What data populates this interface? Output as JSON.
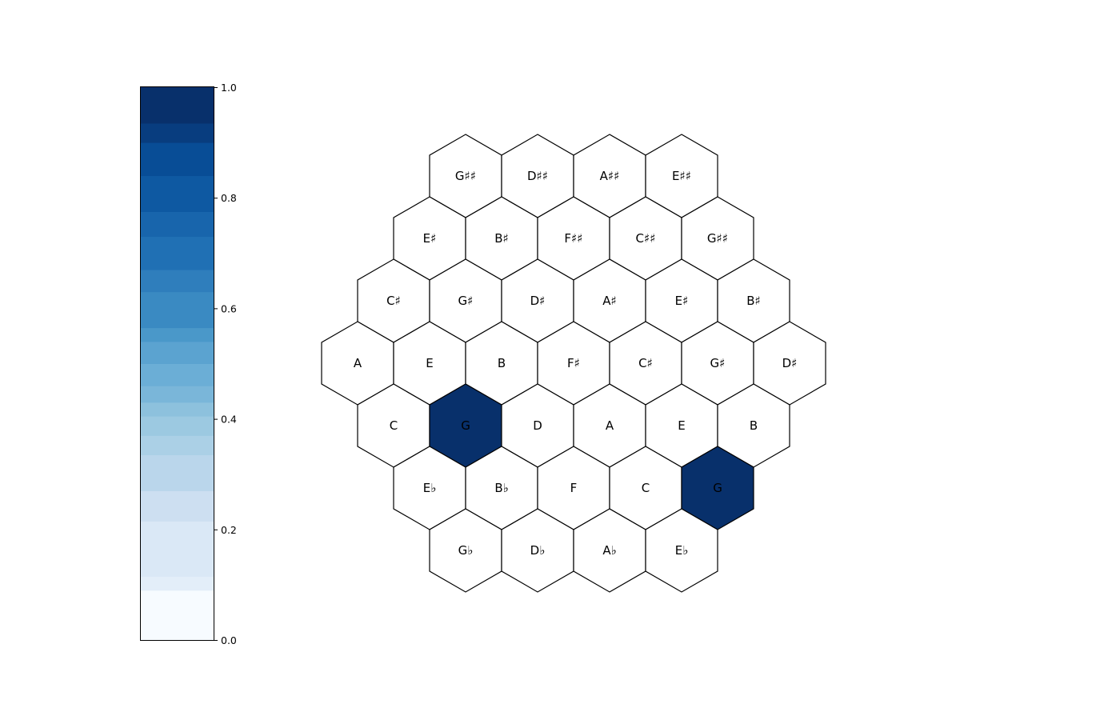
{
  "chart_data": {
    "type": "heatmap",
    "layout": "hexagonal tonnetz",
    "title": "",
    "colormap": "Blues",
    "color_range": [
      0.0,
      1.0
    ],
    "colorbar": {
      "ticks": [
        0.0,
        0.2,
        0.4,
        0.6,
        0.8,
        1.0
      ],
      "tick_labels": [
        "0.0",
        "0.2",
        "0.4",
        "0.6",
        "0.8",
        "1.0"
      ],
      "levels": [
        0.0,
        0.09,
        0.115,
        0.215,
        0.27,
        0.335,
        0.37,
        0.405,
        0.43,
        0.46,
        0.5,
        0.54,
        0.565,
        0.63,
        0.67,
        0.73,
        0.775,
        0.84,
        0.9,
        0.935,
        1.0
      ],
      "level_colors": [
        "#f7fbff",
        "#e3eef9",
        "#dae8f6",
        "#cddff1",
        "#bad6eb",
        "#abd0e6",
        "#9cc9e1",
        "#8dc1dd",
        "#7ab6d9",
        "#6baed6",
        "#5ba3d0",
        "#4a98c9",
        "#3a8ac2",
        "#2f7ebc",
        "#2070b4",
        "#1865ac",
        "#0e59a2",
        "#084d96",
        "#083d7f",
        "#08306b"
      ],
      "position": "left"
    },
    "rows": [
      {
        "labels": [
          "G♯♯",
          "D♯♯",
          "A♯♯",
          "E♯♯"
        ],
        "values": [
          0,
          0,
          0,
          0
        ]
      },
      {
        "labels": [
          "E♯",
          "B♯",
          "F♯♯",
          "C♯♯",
          "G♯♯"
        ],
        "values": [
          0,
          0,
          0,
          0,
          0
        ]
      },
      {
        "labels": [
          "C♯",
          "G♯",
          "D♯",
          "A♯",
          "E♯",
          "B♯"
        ],
        "values": [
          0,
          0,
          0,
          0,
          0,
          0
        ]
      },
      {
        "labels": [
          "A",
          "E",
          "B",
          "F♯",
          "C♯",
          "G♯",
          "D♯"
        ],
        "values": [
          0,
          0,
          0,
          0,
          0,
          0,
          0
        ]
      },
      {
        "labels": [
          "C",
          "G",
          "D",
          "A",
          "E",
          "B"
        ],
        "values": [
          0,
          1,
          0,
          0,
          0,
          0
        ]
      },
      {
        "labels": [
          "E♭",
          "B♭",
          "F",
          "C",
          "G"
        ],
        "values": [
          0,
          0,
          0,
          0,
          1
        ]
      },
      {
        "labels": [
          "G♭",
          "D♭",
          "A♭",
          "E♭"
        ],
        "values": [
          0,
          0,
          0,
          0
        ]
      }
    ],
    "row_offsets": [
      3,
      2,
      1,
      0,
      1,
      2,
      3
    ]
  }
}
